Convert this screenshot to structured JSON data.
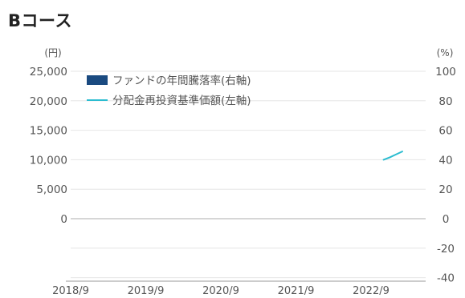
{
  "chart_data": {
    "type": "line",
    "title": "Bコース",
    "left_unit": "(円)",
    "right_unit": "(%)",
    "left_axis": {
      "ylim": [
        -10000,
        25000
      ],
      "ticks": [
        0,
        5000,
        10000,
        15000,
        20000,
        25000
      ],
      "tick_labels": [
        "0",
        "5,000",
        "10,000",
        "15,000",
        "20,000",
        "25,000"
      ]
    },
    "right_axis": {
      "ylim": [
        -40,
        100
      ],
      "ticks": [
        -40,
        -20,
        0,
        20,
        40,
        60,
        80,
        100
      ],
      "tick_labels": [
        "-40",
        "-20",
        "0",
        "20",
        "40",
        "60",
        "80",
        "100"
      ]
    },
    "x_axis": {
      "ticks": [
        "2018/9",
        "2019/9",
        "2020/9",
        "2021/9",
        "2022/9"
      ]
    },
    "grid": true,
    "legend": {
      "placement": "top-left",
      "items": [
        {
          "label": "ファンドの年間騰落率(右軸)",
          "type": "bar",
          "color": "#1a4a80"
        },
        {
          "label": "分配金再投資基準価額(左軸)",
          "type": "line",
          "color": "#2bbcd0"
        }
      ]
    },
    "series": [
      {
        "name": "ファンドの年間騰落率(右軸)",
        "axis": "right",
        "type": "bar",
        "color": "#1a4a80",
        "values": []
      },
      {
        "name": "分配金再投資基準価額(左軸)",
        "axis": "left",
        "type": "line",
        "color": "#2bbcd0",
        "x": [
          "2022/11",
          "2022/12",
          "2023/1",
          "2023/2"
        ],
        "values": [
          10000,
          10400,
          10900,
          11400
        ]
      }
    ]
  }
}
